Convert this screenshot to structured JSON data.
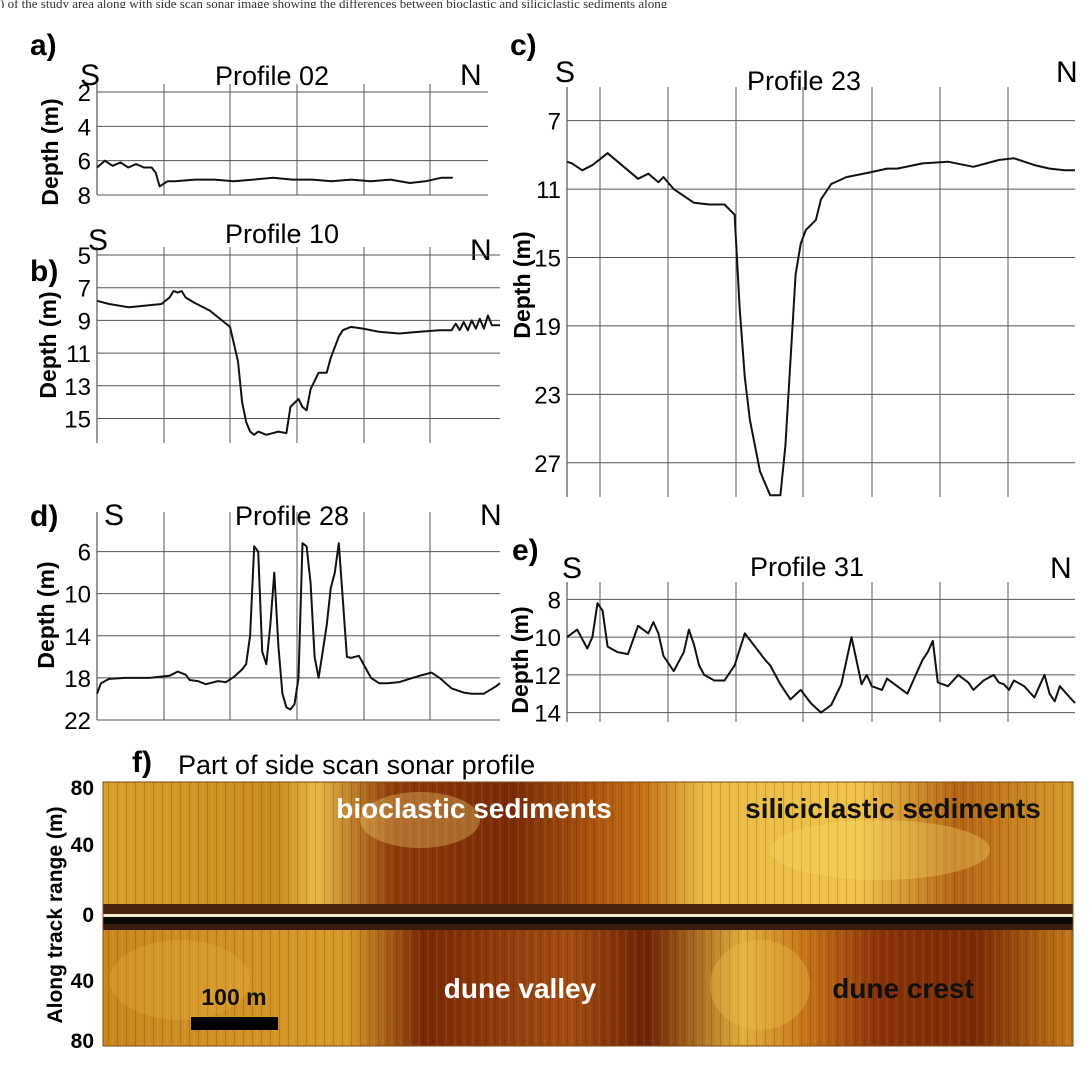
{
  "caption_fragment": ") of the study area along with side scan sonar image showing the differences between bioclastic and siliciclastic sediments along",
  "colors": {
    "line": "#111111",
    "grid": "#555555",
    "sonar_dark": "#5a1a05",
    "sonar_mid": "#a4520c",
    "sonar_light": "#e8b83a"
  },
  "chart_data": [
    {
      "type": "line",
      "panel": "a)",
      "title": "Profile 02",
      "left_label": "S",
      "right_label": "N",
      "ylabel": "Depth (m)",
      "xlabel": "",
      "y_inverted": true,
      "ylim": [
        2,
        8
      ],
      "yticks": [
        "2",
        "4",
        "6",
        "8"
      ],
      "ytick_values": [
        2,
        4,
        6,
        8
      ],
      "xlim": [
        0,
        100
      ],
      "grid": true,
      "x": [
        0,
        2,
        4,
        6,
        8,
        10,
        12,
        14,
        15,
        16,
        18,
        20,
        25,
        30,
        35,
        40,
        45,
        50,
        55,
        60,
        65,
        70,
        75,
        80,
        84,
        88,
        91
      ],
      "y": [
        6.4,
        6.0,
        6.3,
        6.1,
        6.4,
        6.2,
        6.4,
        6.4,
        6.7,
        7.5,
        7.2,
        7.2,
        7.1,
        7.1,
        7.2,
        7.1,
        7.0,
        7.1,
        7.1,
        7.2,
        7.1,
        7.2,
        7.1,
        7.3,
        7.2,
        7.0,
        7.0
      ]
    },
    {
      "type": "line",
      "panel": "b)",
      "title": "Profile 10",
      "left_label": "S",
      "right_label": "N",
      "ylabel": "Depth (m)",
      "xlabel": "",
      "y_inverted": true,
      "ylim": [
        5,
        16.5
      ],
      "yticks": [
        "5",
        "7",
        "9",
        "11",
        "13",
        "15"
      ],
      "ytick_values": [
        5,
        7,
        9,
        11,
        13,
        15
      ],
      "xlim": [
        0,
        100
      ],
      "grid": true,
      "x": [
        0,
        3,
        8,
        16,
        18,
        19,
        20,
        21,
        22,
        24,
        28,
        33,
        35,
        36,
        37,
        38,
        39,
        40,
        42,
        45,
        47,
        48,
        50,
        51,
        52,
        53,
        55,
        57,
        58,
        60,
        61,
        63,
        66,
        70,
        75,
        80,
        85,
        88,
        89,
        90,
        91,
        92,
        93,
        94,
        95,
        96,
        97,
        98,
        100
      ],
      "y": [
        7.8,
        8.0,
        8.2,
        8.0,
        7.6,
        7.2,
        7.3,
        7.2,
        7.6,
        7.9,
        8.4,
        9.4,
        11.5,
        14.0,
        15.2,
        15.8,
        16.0,
        15.8,
        16.0,
        15.8,
        15.9,
        14.3,
        13.8,
        14.3,
        14.5,
        13.2,
        12.2,
        12.2,
        11.3,
        10.0,
        9.6,
        9.4,
        9.5,
        9.7,
        9.8,
        9.7,
        9.6,
        9.6,
        9.2,
        9.6,
        9.1,
        9.6,
        9.0,
        9.5,
        8.9,
        9.5,
        8.7,
        9.3,
        9.3
      ]
    },
    {
      "type": "line",
      "panel": "c)",
      "title": "Profile 23",
      "left_label": "S",
      "right_label": "N",
      "ylabel": "Depth (m)",
      "xlabel": "",
      "y_inverted": true,
      "ylim": [
        5.5,
        29
      ],
      "yticks": [
        "7",
        "11",
        "15",
        "19",
        "23",
        "27"
      ],
      "ytick_values": [
        7,
        11,
        15,
        19,
        23,
        27
      ],
      "xlim": [
        0,
        100
      ],
      "grid": true,
      "x": [
        0,
        1,
        3,
        5,
        8,
        14,
        16,
        18,
        19,
        21,
        23,
        25,
        28,
        31,
        33,
        34,
        35,
        36,
        38,
        40,
        42,
        43,
        44,
        45,
        46,
        47,
        49,
        50,
        52,
        55,
        60,
        63,
        65,
        70,
        75,
        80,
        85,
        88,
        92,
        95,
        98,
        100
      ],
      "y": [
        9.4,
        9.5,
        9.9,
        9.6,
        8.9,
        10.4,
        10.1,
        10.6,
        10.3,
        11.0,
        11.4,
        11.8,
        11.9,
        11.9,
        12.5,
        18.0,
        22.0,
        24.5,
        27.5,
        28.9,
        28.9,
        26.0,
        21.0,
        16.0,
        14.2,
        13.4,
        12.8,
        11.6,
        10.7,
        10.3,
        10.0,
        9.8,
        9.8,
        9.5,
        9.4,
        9.7,
        9.3,
        9.2,
        9.6,
        9.8,
        9.9,
        9.9
      ]
    },
    {
      "type": "line",
      "panel": "d)",
      "title": "Profile 28",
      "left_label": "S",
      "right_label": "N",
      "ylabel": "Depth (m)",
      "xlabel": "",
      "y_inverted": true,
      "ylim": [
        3,
        22
      ],
      "yticks": [
        "6",
        "10",
        "14",
        "18",
        "22"
      ],
      "ytick_values": [
        6,
        10,
        14,
        18,
        22
      ],
      "xlim": [
        0,
        100
      ],
      "grid": true,
      "x": [
        0,
        1,
        3,
        7,
        13,
        18,
        20,
        22,
        23,
        25,
        27,
        30,
        32,
        34,
        36,
        37,
        38,
        39,
        40,
        41,
        42,
        43,
        44,
        45,
        46,
        47,
        48,
        49,
        50,
        51,
        52,
        53,
        54,
        55,
        56,
        57,
        58,
        59,
        60,
        62,
        63,
        65,
        68,
        70,
        72,
        75,
        80,
        83,
        85,
        88,
        91,
        93,
        96,
        99,
        100
      ],
      "y": [
        19.5,
        18.5,
        18.1,
        18.0,
        18.0,
        17.8,
        17.4,
        17.7,
        18.2,
        18.3,
        18.6,
        18.3,
        18.4,
        17.9,
        17.2,
        16.7,
        14.0,
        5.5,
        6.0,
        15.5,
        16.7,
        13.0,
        8.0,
        15.0,
        19.5,
        20.8,
        21.0,
        20.5,
        18.0,
        5.2,
        5.5,
        9.0,
        16.0,
        18.0,
        15.5,
        13.0,
        9.5,
        8.0,
        5.2,
        16.0,
        16.1,
        15.9,
        18.0,
        18.5,
        18.5,
        18.4,
        17.8,
        17.5,
        18.0,
        19.0,
        19.4,
        19.5,
        19.5,
        18.8,
        18.5
      ]
    },
    {
      "type": "line",
      "panel": "e)",
      "title": "Profile 31",
      "left_label": "S",
      "right_label": "N",
      "ylabel": "Depth (m)",
      "xlabel": "",
      "y_inverted": true,
      "ylim": [
        7.5,
        14.5
      ],
      "yticks": [
        "8",
        "10",
        "12",
        "14"
      ],
      "ytick_values": [
        8,
        10,
        12,
        14
      ],
      "xlim": [
        0,
        100
      ],
      "grid": true,
      "x": [
        0,
        2,
        4,
        5,
        6,
        7,
        8,
        10,
        12,
        14,
        16,
        17,
        18,
        19,
        21,
        23,
        24,
        25,
        26,
        27,
        29,
        31,
        33,
        35,
        37,
        39,
        40,
        41,
        42,
        44,
        46,
        48,
        50,
        52,
        54,
        56,
        58,
        59,
        60,
        62,
        63,
        65,
        67,
        69,
        70,
        71,
        72,
        73,
        75,
        77,
        79,
        80,
        82,
        84,
        85,
        86,
        87,
        88,
        90,
        92,
        93,
        94,
        95,
        96,
        97,
        98,
        99,
        100
      ],
      "y": [
        10.0,
        9.6,
        10.6,
        10.0,
        8.2,
        8.6,
        10.5,
        10.8,
        10.9,
        9.4,
        9.8,
        9.2,
        9.8,
        11.0,
        11.8,
        10.8,
        9.6,
        10.4,
        11.5,
        12.0,
        12.3,
        12.3,
        11.5,
        9.8,
        10.5,
        11.2,
        11.5,
        12.0,
        12.5,
        13.3,
        12.8,
        13.5,
        14.0,
        13.6,
        12.5,
        10.0,
        12.5,
        12.0,
        12.6,
        12.8,
        12.2,
        12.6,
        13.0,
        11.8,
        11.2,
        10.8,
        10.2,
        12.4,
        12.6,
        12.0,
        12.4,
        12.8,
        12.3,
        12.0,
        12.4,
        12.5,
        12.8,
        12.3,
        12.6,
        13.2,
        12.6,
        12.0,
        13.0,
        13.4,
        12.6,
        12.9,
        13.2,
        13.5
      ]
    }
  ],
  "sonar": {
    "panel": "f)",
    "title": "Part of side scan sonar profile",
    "ylabel": "Along track range (m)",
    "yticks": [
      "80",
      "40",
      "0",
      "40",
      "80"
    ],
    "annotations": {
      "bioclastic": "bioclastic sediments",
      "siliciclastic": "siliciclastic sediments",
      "valley": "dune valley",
      "crest": "dune crest"
    },
    "scale_bar": "100 m"
  }
}
